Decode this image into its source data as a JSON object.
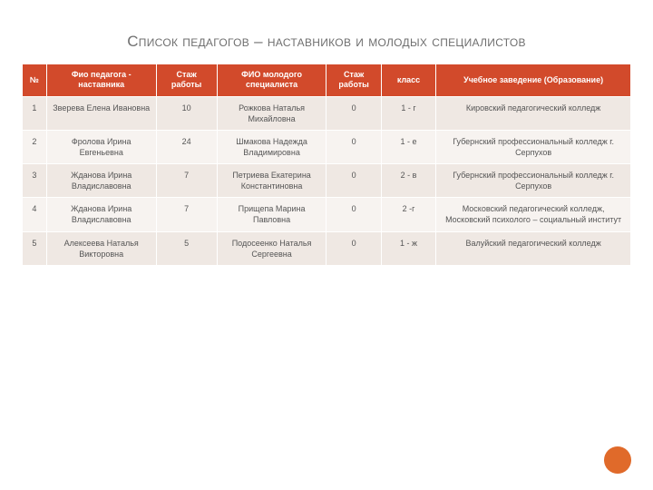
{
  "title": "Список педагогов – наставников и молодых специалистов",
  "colors": {
    "header_bg": "#d24a2b",
    "row_alt_a": "#efe8e3",
    "row_alt_b": "#f7f3f0",
    "accent_circle": "#e06a2a",
    "title_color": "#6f6f6f",
    "text_color": "#555555"
  },
  "table": {
    "column_widths_pct": [
      4,
      18,
      10,
      18,
      9,
      9,
      32
    ],
    "columns": [
      "№",
      "Фио педагога - наставника",
      "Стаж работы",
      "ФИО молодого специалиста",
      "Стаж работы",
      "класс",
      "Учебное заведение (Образование)"
    ],
    "rows": [
      [
        "1",
        "Зверева Елена Ивановна",
        "10",
        "Рожкова Наталья Михайловна",
        "0",
        "1 - г",
        "Кировский педагогический колледж"
      ],
      [
        "2",
        "Фролова Ирина Евгеньевна",
        "24",
        "Шмакова Надежда Владимировна",
        "0",
        "1 - е",
        "Губернский  профессиональный колледж г. Серпухов"
      ],
      [
        "3",
        "Жданова Ирина Владиславовна",
        "7",
        "Петриева Екатерина Константиновна",
        "0",
        "2 - в",
        "Губернский  профессиональный колледж г. Серпухов"
      ],
      [
        "4",
        "Жданова Ирина Владиславовна",
        "7",
        "Прищепа Марина Павловна",
        "0",
        "2 -г",
        "Московский педагогический колледж, Московский психолого – социальный институт"
      ],
      [
        "5",
        "Алексеева  Наталья Викторовна",
        "5",
        "Подосеенко Наталья Сергеевна",
        "0",
        "1 - ж",
        "Валуйский педагогический колледж"
      ]
    ]
  }
}
